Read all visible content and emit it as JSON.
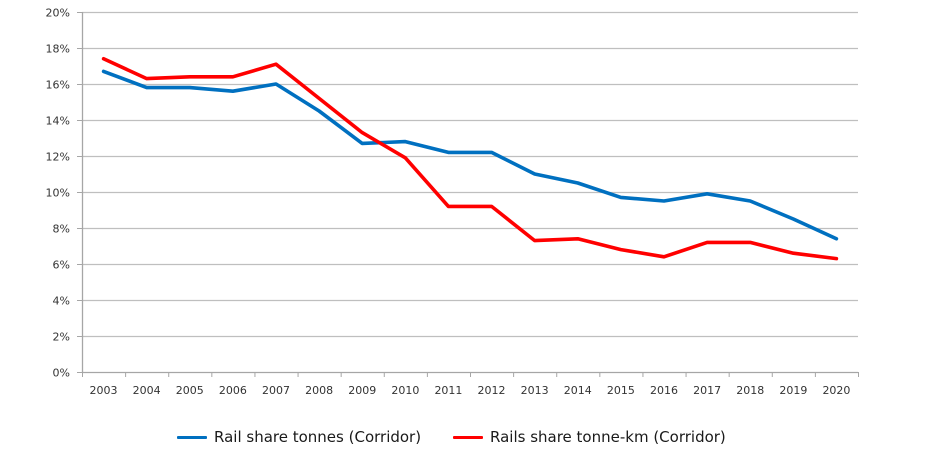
{
  "chart_data": {
    "type": "line",
    "title": "",
    "xlabel": "",
    "ylabel": "",
    "categories": [
      "2003",
      "2004",
      "2005",
      "2006",
      "2007",
      "2008",
      "2009",
      "2010",
      "2011",
      "2012",
      "2013",
      "2014",
      "2015",
      "2016",
      "2017",
      "2018",
      "2019",
      "2020"
    ],
    "ylim": [
      0,
      20
    ],
    "yticks": [
      0,
      2,
      4,
      6,
      8,
      10,
      12,
      14,
      16,
      18,
      20
    ],
    "ytick_labels": [
      "0%",
      "2%",
      "4%",
      "6%",
      "8%",
      "10%",
      "12%",
      "14%",
      "16%",
      "18%",
      "20%"
    ],
    "y_unit": "%",
    "grid": true,
    "legend_position": "bottom",
    "series": [
      {
        "name": "Rail share tonnes (Corridor)",
        "color": "#0070C0",
        "values": [
          16.7,
          15.8,
          15.8,
          15.6,
          16.0,
          14.5,
          12.7,
          12.8,
          12.2,
          12.2,
          11.0,
          10.5,
          9.7,
          9.5,
          9.9,
          9.5,
          8.5,
          7.4
        ]
      },
      {
        "name": "Rails share tonne-km (Corridor)",
        "color": "#FF0000",
        "values": [
          17.4,
          16.3,
          16.4,
          16.4,
          17.1,
          15.2,
          13.3,
          11.9,
          9.2,
          9.2,
          7.3,
          7.4,
          6.8,
          6.4,
          7.2,
          7.2,
          6.6,
          6.3
        ]
      }
    ]
  }
}
